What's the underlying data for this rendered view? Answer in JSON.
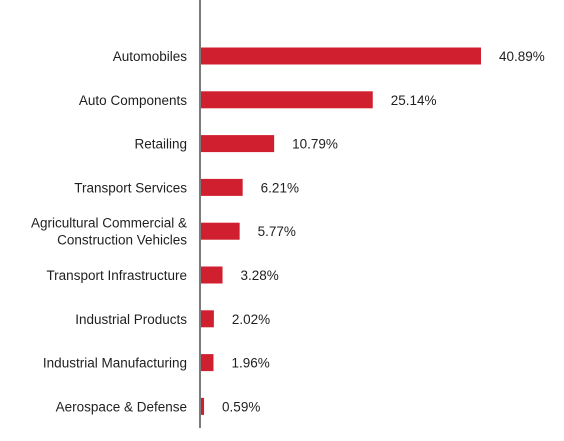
{
  "chart_data": {
    "type": "bar",
    "orientation": "horizontal",
    "categories": [
      [
        "Automobiles"
      ],
      [
        "Auto Components"
      ],
      [
        "Retailing"
      ],
      [
        "Transport Services"
      ],
      [
        "Agricultural Commercial &",
        "Construction Vehicles"
      ],
      [
        "Transport Infrastructure"
      ],
      [
        "Industrial Products"
      ],
      [
        "Industrial Manufacturing"
      ],
      [
        "Aerospace & Defense"
      ]
    ],
    "values": [
      40.89,
      25.14,
      10.79,
      6.21,
      5.77,
      3.28,
      2.02,
      1.96,
      0.59
    ],
    "value_labels": [
      "40.89%",
      "25.14%",
      "10.79%",
      "6.21%",
      "5.77%",
      "3.28%",
      "2.02%",
      "1.96%",
      "0.59%"
    ],
    "title": "",
    "xlabel": "",
    "ylabel": "",
    "xlim": [
      0,
      40.89
    ],
    "grid": false,
    "legend": "none",
    "bar_color": "#d0202f",
    "axis_color": "#7a7a7a"
  }
}
